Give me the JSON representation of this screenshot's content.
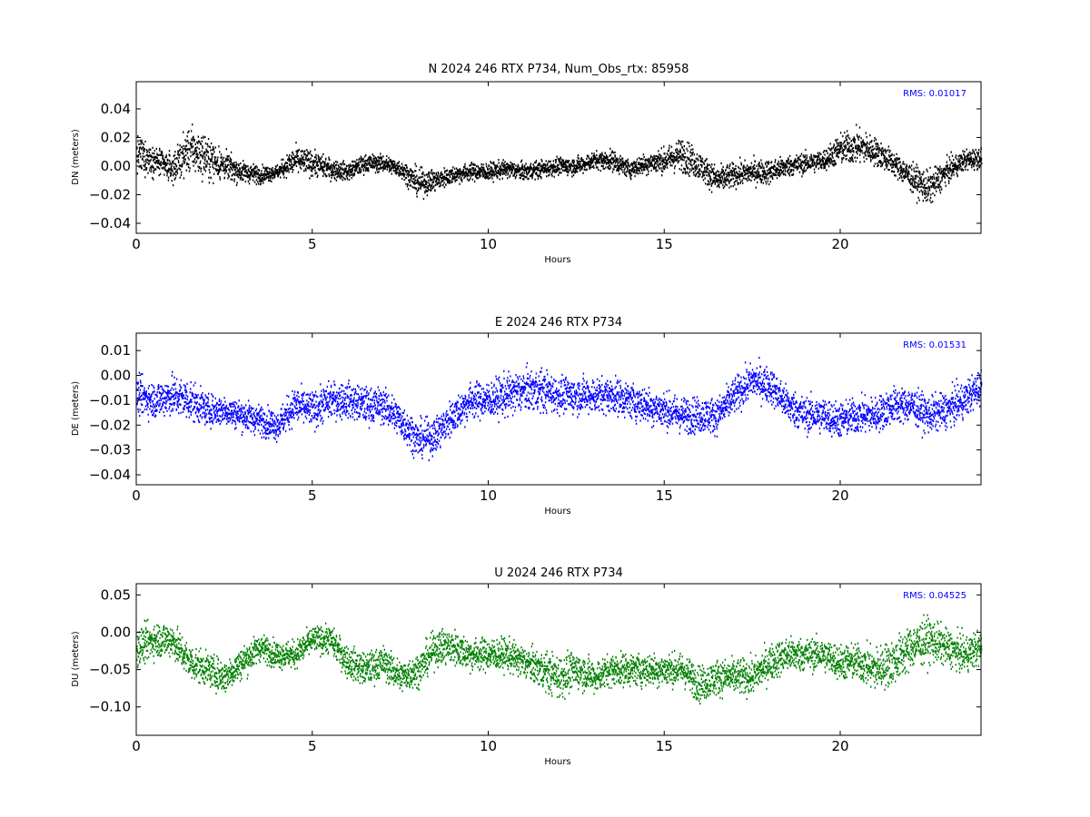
{
  "colors": {
    "background": "#ffffff",
    "axes_frame": "#000000",
    "rms_text": "#0000ff",
    "north": "#000000",
    "east": "#0000ff",
    "up": "#008000"
  },
  "chart_data": [
    {
      "type": "scatter",
      "title": "N 2024 246 RTX  P734, Num_Obs_rtx: 85958",
      "xlabel": "Hours",
      "ylabel": "DN (meters)",
      "annotation": "RMS:  0.01017",
      "xlim": [
        0,
        24
      ],
      "ylim": [
        -0.047,
        0.059
      ],
      "xticks": [
        0,
        5,
        10,
        15,
        20
      ],
      "xtick_labels": [
        "0",
        "5",
        "10",
        "15",
        "20"
      ],
      "yticks": [
        -0.04,
        -0.02,
        0.0,
        0.02,
        0.04
      ],
      "ytick_labels": [
        "−0.04",
        "−0.02",
        "0.00",
        "0.02",
        "0.04"
      ],
      "grid": false,
      "color": "#000000",
      "series": [
        {
          "x": [
            0,
            0.5,
            1,
            1.5,
            2,
            2.5,
            3,
            3.5,
            4,
            4.5,
            5,
            5.5,
            6,
            6.5,
            7,
            7.5,
            8,
            8.5,
            9,
            9.5,
            10,
            10.5,
            11,
            11.5,
            12,
            12.5,
            13,
            13.5,
            14,
            14.5,
            15,
            15.5,
            16,
            16.5,
            17,
            17.5,
            18,
            18.5,
            19,
            19.5,
            20,
            20.5,
            21,
            21.5,
            22,
            22.5,
            23,
            23.5,
            24
          ],
          "y": [
            0.008,
            0.004,
            -0.002,
            0.012,
            0.006,
            0.0,
            -0.004,
            -0.006,
            -0.004,
            0.004,
            0.002,
            -0.002,
            -0.004,
            0.002,
            0.002,
            -0.002,
            -0.012,
            -0.01,
            -0.006,
            -0.004,
            -0.004,
            -0.002,
            -0.004,
            -0.002,
            0.0,
            0.0,
            0.004,
            0.004,
            -0.002,
            0.002,
            0.004,
            0.008,
            0.0,
            -0.01,
            -0.006,
            -0.004,
            -0.004,
            0.0,
            0.002,
            0.004,
            0.012,
            0.014,
            0.01,
            0.002,
            -0.008,
            -0.016,
            -0.004,
            0.004,
            0.006
          ],
          "spread": [
            0.022,
            0.016,
            0.016,
            0.026,
            0.024,
            0.016,
            0.012,
            0.01,
            0.008,
            0.016,
            0.014,
            0.012,
            0.01,
            0.01,
            0.01,
            0.01,
            0.016,
            0.012,
            0.01,
            0.01,
            0.01,
            0.01,
            0.01,
            0.01,
            0.01,
            0.01,
            0.01,
            0.012,
            0.01,
            0.012,
            0.014,
            0.02,
            0.016,
            0.016,
            0.014,
            0.014,
            0.014,
            0.012,
            0.012,
            0.012,
            0.018,
            0.02,
            0.016,
            0.014,
            0.016,
            0.02,
            0.014,
            0.012,
            0.012
          ]
        }
      ]
    },
    {
      "type": "scatter",
      "title": "E 2024 246 RTX  P734",
      "xlabel": "Hours",
      "ylabel": "DE (meters)",
      "annotation": "RMS:  0.01531",
      "xlim": [
        0,
        24
      ],
      "ylim": [
        -0.044,
        0.017
      ],
      "xticks": [
        0,
        5,
        10,
        15,
        20
      ],
      "xtick_labels": [
        "0",
        "5",
        "10",
        "15",
        "20"
      ],
      "yticks": [
        -0.04,
        -0.03,
        -0.02,
        -0.01,
        0.0,
        0.01
      ],
      "ytick_labels": [
        "−0.04",
        "−0.03",
        "−0.02",
        "−0.01",
        "0.00",
        "0.01"
      ],
      "grid": false,
      "color": "#0000ff",
      "series": [
        {
          "x": [
            0,
            0.5,
            1,
            1.5,
            2,
            2.5,
            3,
            3.5,
            4,
            4.5,
            5,
            5.5,
            6,
            6.5,
            7,
            7.5,
            8,
            8.5,
            9,
            9.5,
            10,
            10.5,
            11,
            11.5,
            12,
            12.5,
            13,
            13.5,
            14,
            14.5,
            15,
            15.5,
            16,
            16.5,
            17,
            17.5,
            18,
            18.5,
            19,
            19.5,
            20,
            20.5,
            21,
            21.5,
            22,
            22.5,
            23,
            23.5,
            24
          ],
          "y": [
            -0.008,
            -0.01,
            -0.008,
            -0.01,
            -0.014,
            -0.014,
            -0.016,
            -0.018,
            -0.02,
            -0.012,
            -0.014,
            -0.01,
            -0.01,
            -0.012,
            -0.012,
            -0.018,
            -0.026,
            -0.024,
            -0.016,
            -0.01,
            -0.01,
            -0.008,
            -0.006,
            -0.006,
            -0.008,
            -0.008,
            -0.008,
            -0.008,
            -0.01,
            -0.012,
            -0.014,
            -0.016,
            -0.016,
            -0.016,
            -0.008,
            -0.002,
            -0.004,
            -0.012,
            -0.016,
            -0.016,
            -0.018,
            -0.016,
            -0.016,
            -0.012,
            -0.012,
            -0.016,
            -0.014,
            -0.01,
            -0.004
          ],
          "spread": [
            0.012,
            0.012,
            0.014,
            0.014,
            0.01,
            0.01,
            0.01,
            0.01,
            0.01,
            0.012,
            0.012,
            0.012,
            0.012,
            0.012,
            0.012,
            0.012,
            0.012,
            0.012,
            0.012,
            0.012,
            0.012,
            0.014,
            0.014,
            0.014,
            0.012,
            0.012,
            0.012,
            0.012,
            0.012,
            0.012,
            0.012,
            0.012,
            0.012,
            0.012,
            0.012,
            0.012,
            0.012,
            0.012,
            0.012,
            0.012,
            0.012,
            0.012,
            0.012,
            0.012,
            0.012,
            0.012,
            0.012,
            0.012,
            0.012
          ]
        }
      ]
    },
    {
      "type": "scatter",
      "title": "U 2024 246 RTX  P734",
      "xlabel": "Hours",
      "ylabel": "DU (meters)",
      "annotation": "RMS:  0.04525",
      "xlim": [
        0,
        24
      ],
      "ylim": [
        -0.138,
        0.065
      ],
      "xticks": [
        0,
        5,
        10,
        15,
        20
      ],
      "xtick_labels": [
        "0",
        "5",
        "10",
        "15",
        "20"
      ],
      "yticks": [
        -0.1,
        -0.05,
        0.0,
        0.05
      ],
      "ytick_labels": [
        "−0.10",
        "−0.05",
        "0.00",
        "0.05"
      ],
      "grid": false,
      "color": "#008000",
      "series": [
        {
          "x": [
            0,
            0.5,
            1,
            1.5,
            2,
            2.5,
            3,
            3.5,
            4,
            4.5,
            5,
            5.5,
            6,
            6.5,
            7,
            7.5,
            8,
            8.5,
            9,
            9.5,
            10,
            10.5,
            11,
            11.5,
            12,
            12.5,
            13,
            13.5,
            14,
            14.5,
            15,
            15.5,
            16,
            16.5,
            17,
            17.5,
            18,
            18.5,
            19,
            19.5,
            20,
            20.5,
            21,
            21.5,
            22,
            22.5,
            23,
            23.5,
            24
          ],
          "y": [
            -0.02,
            -0.01,
            -0.01,
            -0.04,
            -0.05,
            -0.06,
            -0.04,
            -0.02,
            -0.03,
            -0.03,
            -0.01,
            -0.01,
            -0.04,
            -0.05,
            -0.04,
            -0.06,
            -0.05,
            -0.02,
            -0.02,
            -0.03,
            -0.03,
            -0.03,
            -0.04,
            -0.05,
            -0.06,
            -0.05,
            -0.06,
            -0.05,
            -0.05,
            -0.05,
            -0.05,
            -0.05,
            -0.07,
            -0.06,
            -0.06,
            -0.06,
            -0.04,
            -0.03,
            -0.03,
            -0.03,
            -0.04,
            -0.04,
            -0.05,
            -0.04,
            -0.02,
            -0.01,
            -0.02,
            -0.03,
            -0.02
          ],
          "spread": [
            0.04,
            0.04,
            0.04,
            0.04,
            0.036,
            0.036,
            0.036,
            0.03,
            0.03,
            0.03,
            0.03,
            0.03,
            0.036,
            0.036,
            0.036,
            0.036,
            0.036,
            0.04,
            0.04,
            0.036,
            0.036,
            0.036,
            0.036,
            0.04,
            0.05,
            0.04,
            0.036,
            0.036,
            0.036,
            0.036,
            0.036,
            0.036,
            0.04,
            0.04,
            0.04,
            0.04,
            0.04,
            0.04,
            0.036,
            0.036,
            0.04,
            0.04,
            0.05,
            0.05,
            0.05,
            0.05,
            0.04,
            0.04,
            0.04
          ]
        }
      ]
    }
  ]
}
